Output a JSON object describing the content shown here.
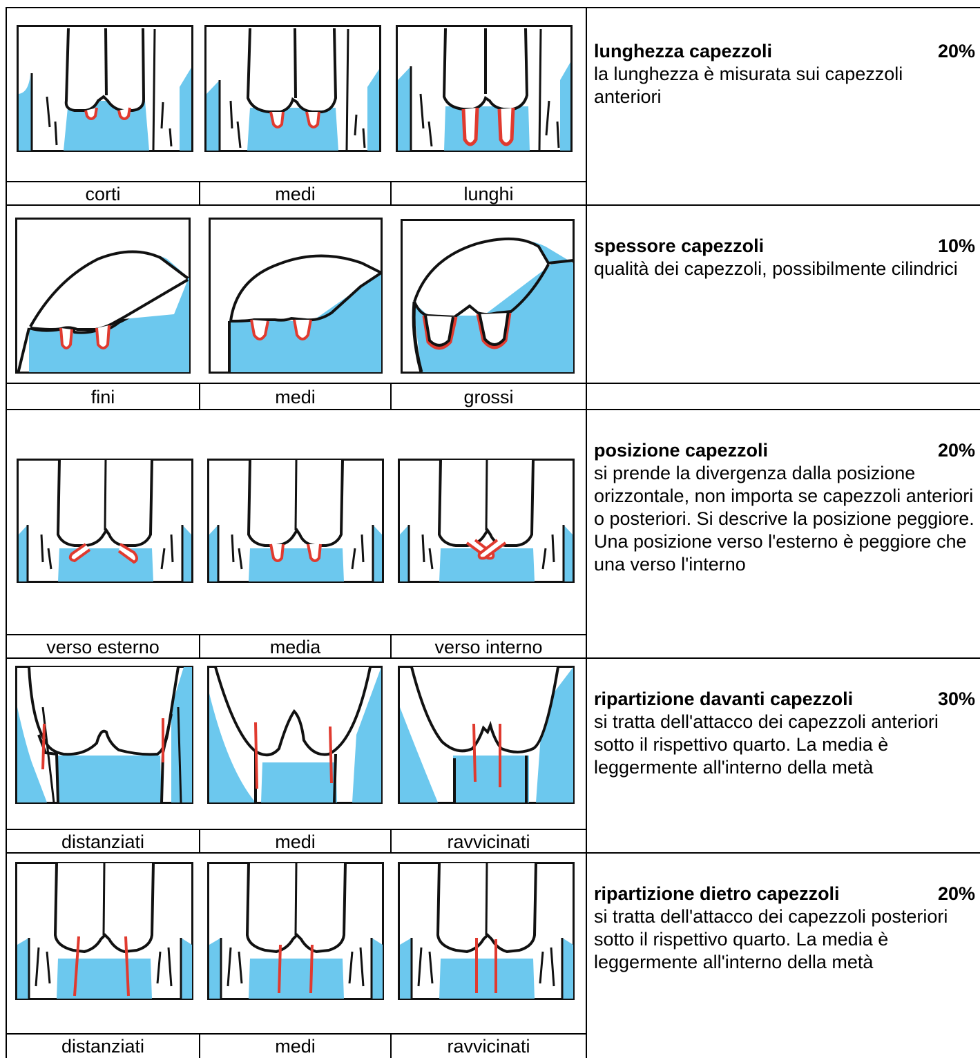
{
  "rows": [
    {
      "title": "lunghezza capezzoli",
      "weight": "20%",
      "description": "la lunghezza è misurata sui capezzoli anteriori",
      "labels": [
        "corti",
        "medi",
        "lunghi"
      ]
    },
    {
      "title": "spessore capezzoli",
      "weight": "10%",
      "description": "qualità dei capezzoli, possibilmente cilindrici",
      "labels": [
        "fini",
        "medi",
        "grossi"
      ]
    },
    {
      "title": "posizione capezzoli",
      "weight": "20%",
      "description": "si prende la divergenza dalla posizione orizzontale, non importa se capezzoli anteriori o posteriori. Si descrive la posizione peggiore. Una posizione verso l'esterno è peggiore che una verso l'interno",
      "labels": [
        "verso esterno",
        "media",
        "verso interno"
      ]
    },
    {
      "title": "ripartizione davanti capezzoli",
      "weight": "30%",
      "description": "si tratta dell'attacco dei capezzoli anteriori sotto il rispettivo quarto. La media è leggermente all'interno della metà",
      "labels": [
        "distanziati",
        "medi",
        "ravvicinati"
      ]
    },
    {
      "title": "ripartizione dietro capezzoli",
      "weight": "20%",
      "description": "si tratta dell'attacco dei capezzoli posteriori sotto il rispettivo quarto. La media è leggermente all'interno della metà",
      "labels": [
        "distanziati",
        "medi",
        "ravvicinati"
      ]
    }
  ],
  "colors": {
    "udder_fill": "#6cc8ee",
    "teat_line": "#e03a2f",
    "outline": "#111111"
  }
}
